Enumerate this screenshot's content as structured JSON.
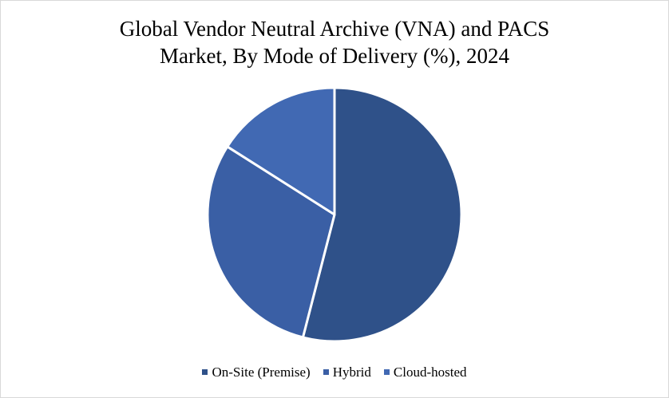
{
  "chart_data": {
    "type": "pie",
    "title_lines": [
      "Global Vendor Neutral Archive (VNA) and PACS",
      "Market, By Mode of Delivery (%), 2024"
    ],
    "categories": [
      "On-Site (Premise)",
      "Hybrid",
      "Cloud-hosted"
    ],
    "values": [
      54,
      30,
      16
    ],
    "unit": "%",
    "colors": [
      "#2f5189",
      "#3a5fa5",
      "#4169b3"
    ],
    "legend_placement": "bottom",
    "start_angle_deg": 0,
    "direction": "clockwise"
  }
}
